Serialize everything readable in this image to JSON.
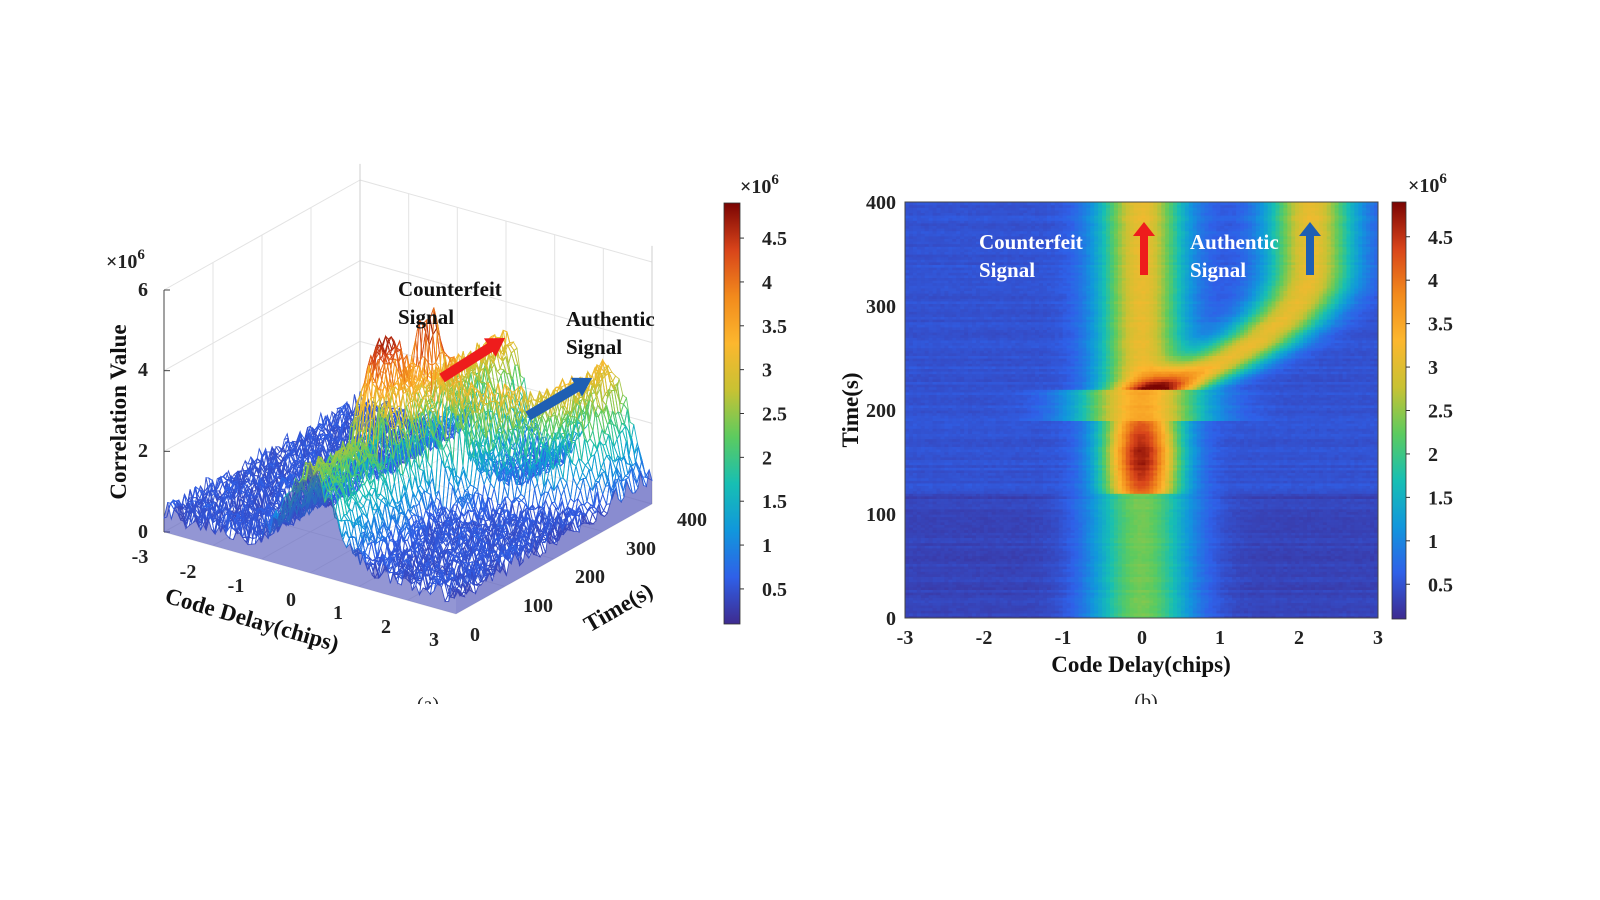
{
  "colormap": [
    "#3e2b8f",
    "#2f60e8",
    "#1197dc",
    "#17bfb3",
    "#5ccb5f",
    "#c8c233",
    "#fcb72e",
    "#f28a1c",
    "#d8441a",
    "#7a0403"
  ],
  "chart_data": [
    {
      "type": "surface",
      "panel_label": "(a)",
      "xlabel": "Code Delay(chips)",
      "ylabel": "Time(s)",
      "zlabel": "Correlation Value",
      "z_multiplier": "×10",
      "z_exponent": "6",
      "x_ticks": [
        "-3",
        "-2",
        "-1",
        "0",
        "1",
        "2",
        "3"
      ],
      "y_ticks": [
        "0",
        "100",
        "200",
        "300",
        "400"
      ],
      "z_ticks": [
        "0",
        "2",
        "4",
        "6"
      ],
      "xlim": [
        -3,
        3
      ],
      "ylim": [
        0,
        400
      ],
      "zlim": [
        0,
        6
      ],
      "annotations": [
        {
          "line1": "Counterfeit",
          "line2": "Signal",
          "arrow_color": "#ee1c1c"
        },
        {
          "line1": "Authentic",
          "line2": "Signal",
          "arrow_color": "#1f5fb3"
        }
      ],
      "colorbar": {
        "multiplier": "×10",
        "exponent": "6",
        "ticks": [
          "0.5",
          "1",
          "1.5",
          "2",
          "2.5",
          "3",
          "3.5",
          "4",
          "4.5"
        ],
        "range": [
          0.1,
          4.9
        ]
      }
    },
    {
      "type": "heatmap",
      "panel_label": "(b)",
      "xlabel": "Code Delay(chips)",
      "ylabel": "Time(s)",
      "x_ticks": [
        "-3",
        "-2",
        "-1",
        "0",
        "1",
        "2",
        "3"
      ],
      "y_ticks": [
        "0",
        "100",
        "200",
        "300",
        "400"
      ],
      "xlim": [
        -3,
        3
      ],
      "ylim": [
        0,
        400
      ],
      "annotations": [
        {
          "line1": "Counterfeit",
          "line2": "Signal",
          "arrow_color": "#ee1c1c"
        },
        {
          "line1": "Authentic",
          "line2": "Signal",
          "arrow_color": "#1f5fb3"
        }
      ],
      "colorbar": {
        "multiplier": "×10",
        "exponent": "6",
        "ticks": [
          "0.5",
          "1",
          "1.5",
          "2",
          "2.5",
          "3",
          "3.5",
          "4",
          "4.5"
        ],
        "range": [
          0.1,
          4.9
        ]
      }
    }
  ]
}
